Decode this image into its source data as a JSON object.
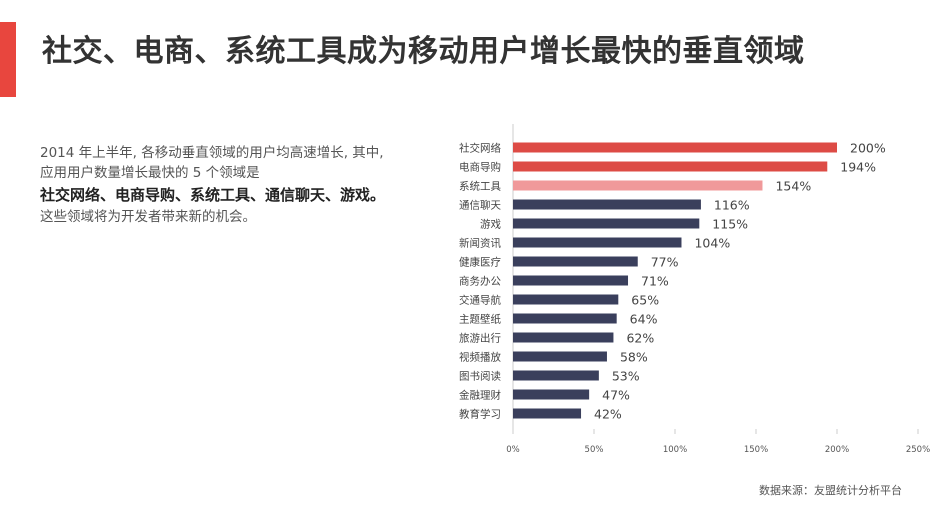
{
  "header": {
    "title": "社交、电商、系统工具成为移动用户增长最快的垂直领域",
    "accent_color": "#e8463e"
  },
  "intro": {
    "line1": "2014 年上半年, 各移动垂直领域的用户均高速增长, 其中,",
    "line2": "应用用户数量增长最快的 5 个领域是",
    "highlight": "社交网络、电商导购、系统工具、通信聊天、游戏。",
    "line3": "这些领域将为开发者带来新的机会。"
  },
  "source": "数据来源：友盟统计分析平台",
  "chart_data": {
    "type": "bar",
    "orientation": "horizontal",
    "categories": [
      "社交网络",
      "电商导购",
      "系统工具",
      "通信聊天",
      "游戏",
      "新闻资讯",
      "健康医疗",
      "商务办公",
      "交通导航",
      "主题壁纸",
      "旅游出行",
      "视频播放",
      "图书阅读",
      "金融理财",
      "教育学习"
    ],
    "values": [
      200,
      194,
      154,
      116,
      115,
      104,
      77,
      71,
      65,
      64,
      62,
      58,
      53,
      47,
      42
    ],
    "value_labels": [
      "200%",
      "194%",
      "154%",
      "116%",
      "115%",
      "104%",
      "77%",
      "71%",
      "65%",
      "64%",
      "62%",
      "58%",
      "53%",
      "47%",
      "42%"
    ],
    "bar_colors": [
      "#dd4b45",
      "#dd4b45",
      "#f0999a",
      "#3a3f5c",
      "#3a3f5c",
      "#3a3f5c",
      "#3a3f5c",
      "#3a3f5c",
      "#3a3f5c",
      "#3a3f5c",
      "#3a3f5c",
      "#3a3f5c",
      "#3a3f5c",
      "#3a3f5c",
      "#3a3f5c"
    ],
    "xlim": [
      0,
      250
    ],
    "x_ticks": [
      "0%",
      "50%",
      "100%",
      "150%",
      "200%",
      "250%"
    ],
    "grid": false
  }
}
